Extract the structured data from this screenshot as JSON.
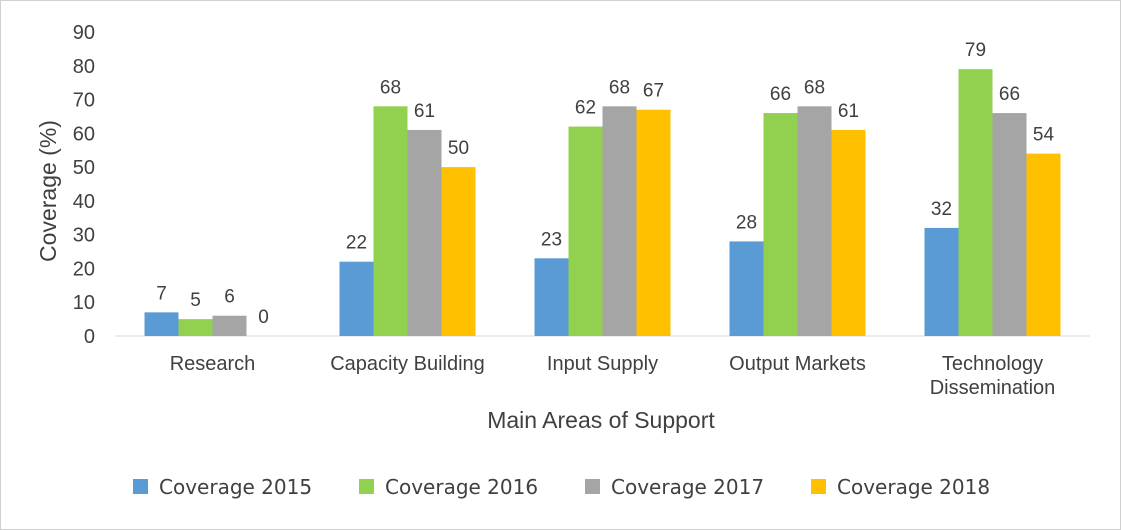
{
  "chart_data": {
    "type": "bar",
    "title": "",
    "xlabel": "Main Areas of Support",
    "ylabel": "Coverage (%)",
    "ylim": [
      0,
      90
    ],
    "yticks": [
      0,
      10,
      20,
      30,
      40,
      50,
      60,
      70,
      80,
      90
    ],
    "grid": false,
    "legend_position": "bottom",
    "categories": [
      [
        "Research"
      ],
      [
        "Capacity Building"
      ],
      [
        "Input Supply"
      ],
      [
        "Output Markets"
      ],
      [
        "Technology",
        "Dissemination"
      ]
    ],
    "series": [
      {
        "name": "Coverage 2015",
        "color": "#5b9bd5",
        "values": [
          7,
          22,
          23,
          28,
          32
        ]
      },
      {
        "name": "Coverage 2016",
        "color": "#92d050",
        "values": [
          5,
          68,
          62,
          66,
          79
        ]
      },
      {
        "name": "Coverage 2017",
        "color": "#a5a5a5",
        "values": [
          6,
          61,
          68,
          68,
          66
        ]
      },
      {
        "name": "Coverage 2018",
        "color": "#ffc000",
        "values": [
          0,
          50,
          67,
          61,
          54
        ]
      }
    ]
  }
}
